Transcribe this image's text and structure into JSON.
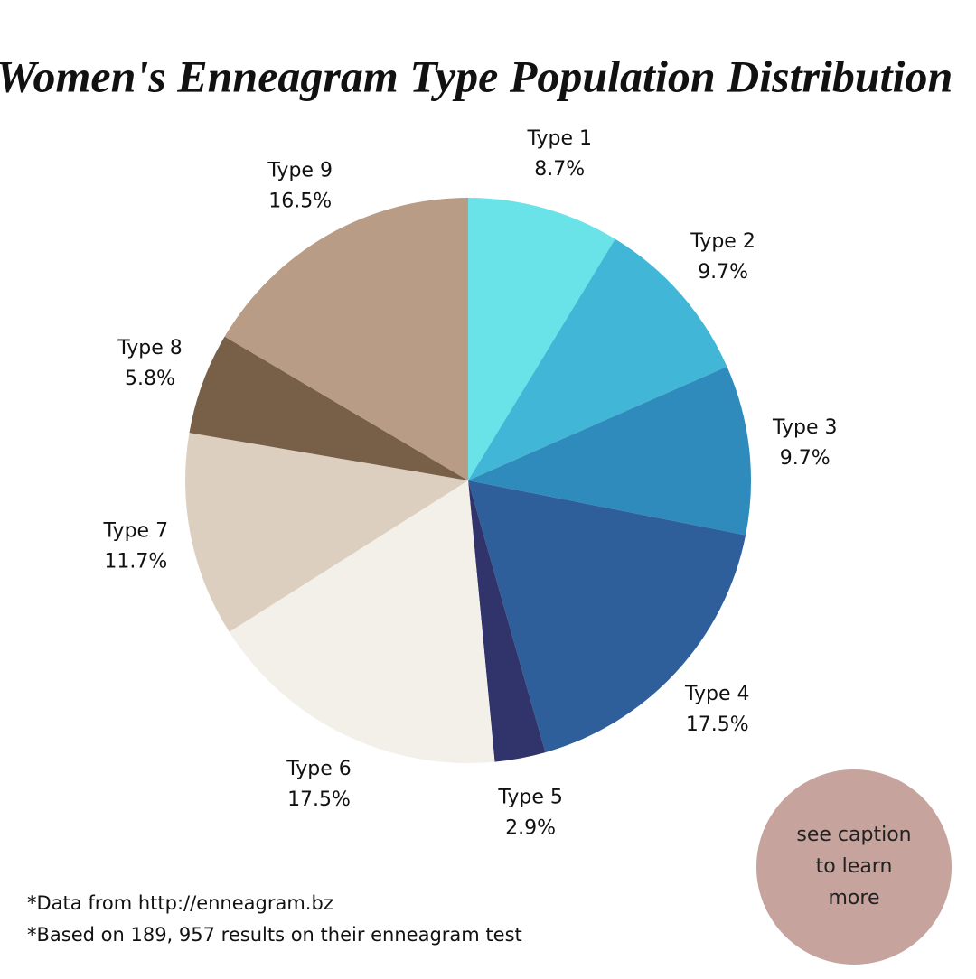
{
  "chart_data": {
    "type": "pie",
    "title": "Women's Enneagram Type Population Distribution",
    "categories": [
      "Type 1",
      "Type 2",
      "Type 3",
      "Type 4",
      "Type 5",
      "Type 6",
      "Type 7",
      "Type 8",
      "Type 9"
    ],
    "values": [
      8.7,
      9.7,
      9.7,
      17.5,
      2.9,
      17.5,
      11.7,
      5.8,
      16.5
    ],
    "value_labels": [
      "8.7%",
      "9.7%",
      "9.7%",
      "17.5%",
      "2.9%",
      "17.5%",
      "11.7%",
      "5.8%",
      "16.5%"
    ],
    "colors": [
      "#6ae3e8",
      "#42b6d6",
      "#2e8bbb",
      "#2e5f9a",
      "#30346a",
      "#f3efe9",
      "#ddcfbf",
      "#775f48",
      "#b89c86"
    ],
    "footnotes": [
      "*Data from http://enneagram.bz",
      "*Based on 189, 957 results on their enneagram test"
    ],
    "badge": [
      "see caption",
      "to learn",
      "more"
    ]
  }
}
